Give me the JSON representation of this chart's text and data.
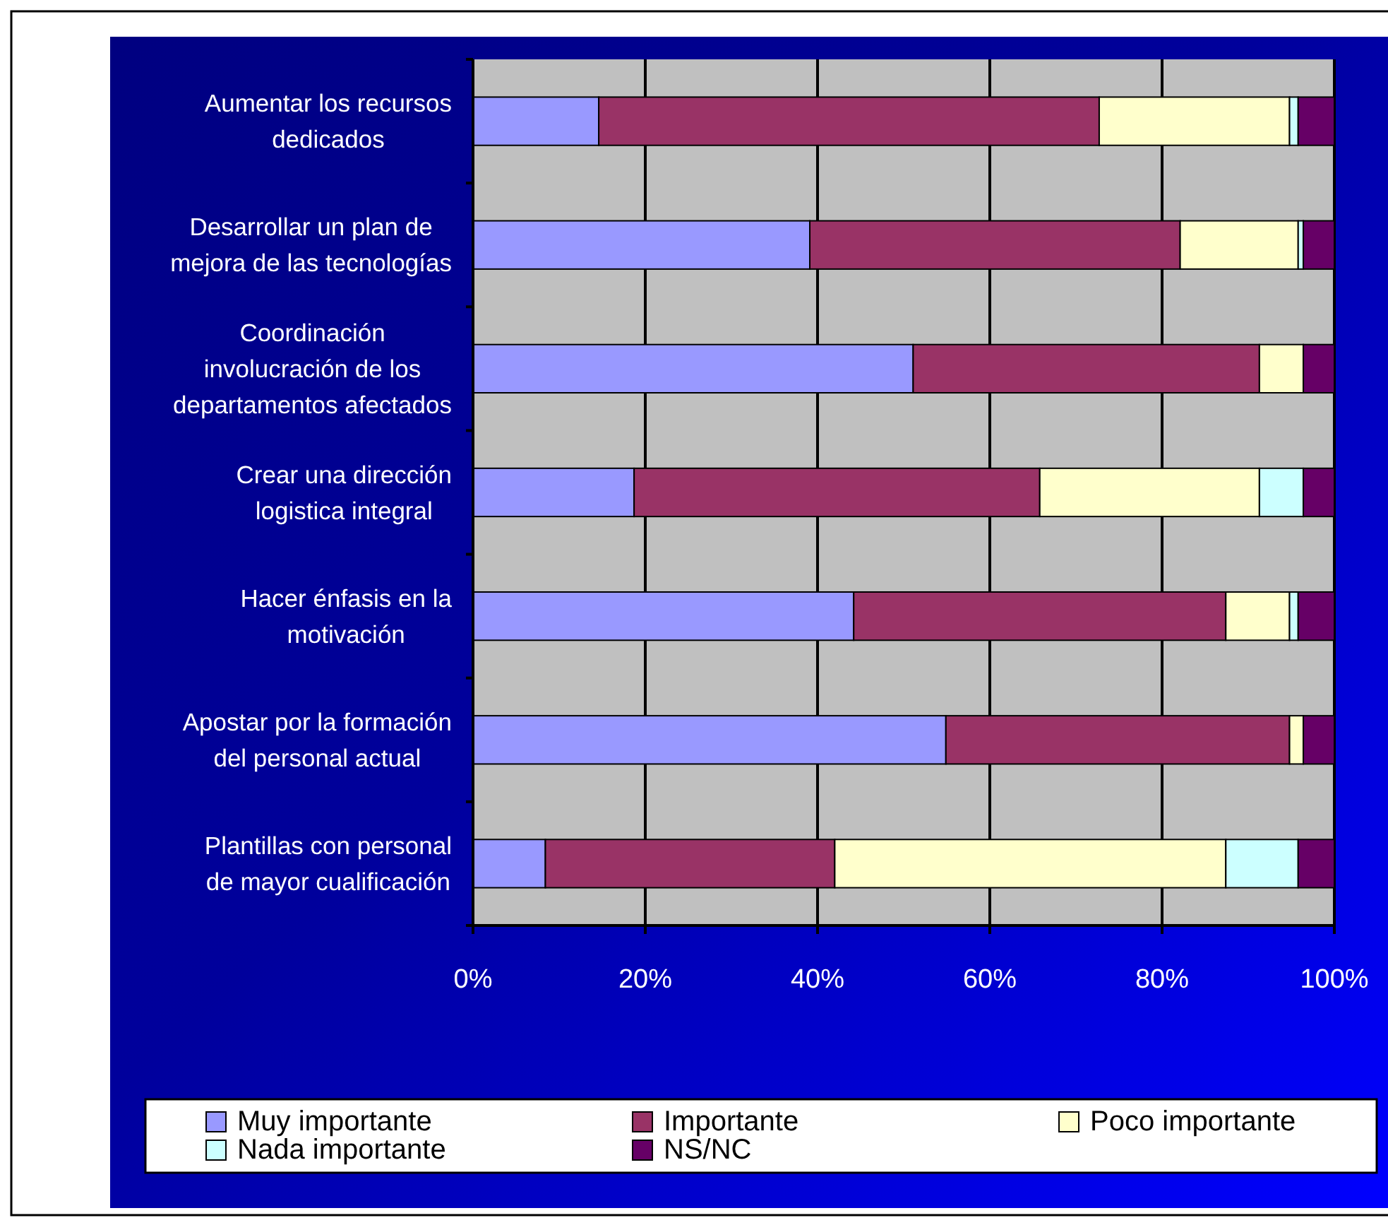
{
  "chart_data": {
    "type": "bar",
    "orientation": "horizontal",
    "stacked": true,
    "categories": [
      "Aumentar los recursos\ndedicados",
      "Desarrollar un plan de\nmejora de las tecnologías",
      "Coordinación\ninvolucración de los\ndepartamentos afectados",
      "Crear una dirección\nlogistica integral",
      "Hacer énfasis en la\nmotivación",
      "Apostar por la formación\ndel personal actual",
      "Plantillas con personal\nde mayor cualificación"
    ],
    "series": [
      {
        "name": "Muy importante",
        "color": "#9999ff",
        "values": [
          14.6,
          39.1,
          51.1,
          18.7,
          44.2,
          54.9,
          8.4
        ]
      },
      {
        "name": "Importante",
        "color": "#993366",
        "values": [
          58.1,
          43.0,
          40.2,
          47.1,
          43.2,
          39.9,
          33.6
        ]
      },
      {
        "name": "Poco importante",
        "color": "#ffffcc",
        "values": [
          22.1,
          13.7,
          5.1,
          25.5,
          7.4,
          1.6,
          45.4
        ]
      },
      {
        "name": "Nada importante",
        "color": "#ccffff",
        "values": [
          1.0,
          0.6,
          null,
          5.1,
          1.0,
          null,
          8.4
        ]
      },
      {
        "name": "NS/NC",
        "color": "#660066",
        "values": [
          4.2,
          3.6,
          3.6,
          3.6,
          4.2,
          3.6,
          4.2
        ]
      }
    ],
    "xlim": [
      0,
      100
    ],
    "xticks": [
      {
        "value": 0,
        "label": "0%"
      },
      {
        "value": 20,
        "label": "20%"
      },
      {
        "value": 40,
        "label": "40%"
      },
      {
        "value": 60,
        "label": "60%"
      },
      {
        "value": 80,
        "label": "80%"
      },
      {
        "value": 100,
        "label": "100%"
      }
    ],
    "grid": "x",
    "legend": "bottom"
  }
}
